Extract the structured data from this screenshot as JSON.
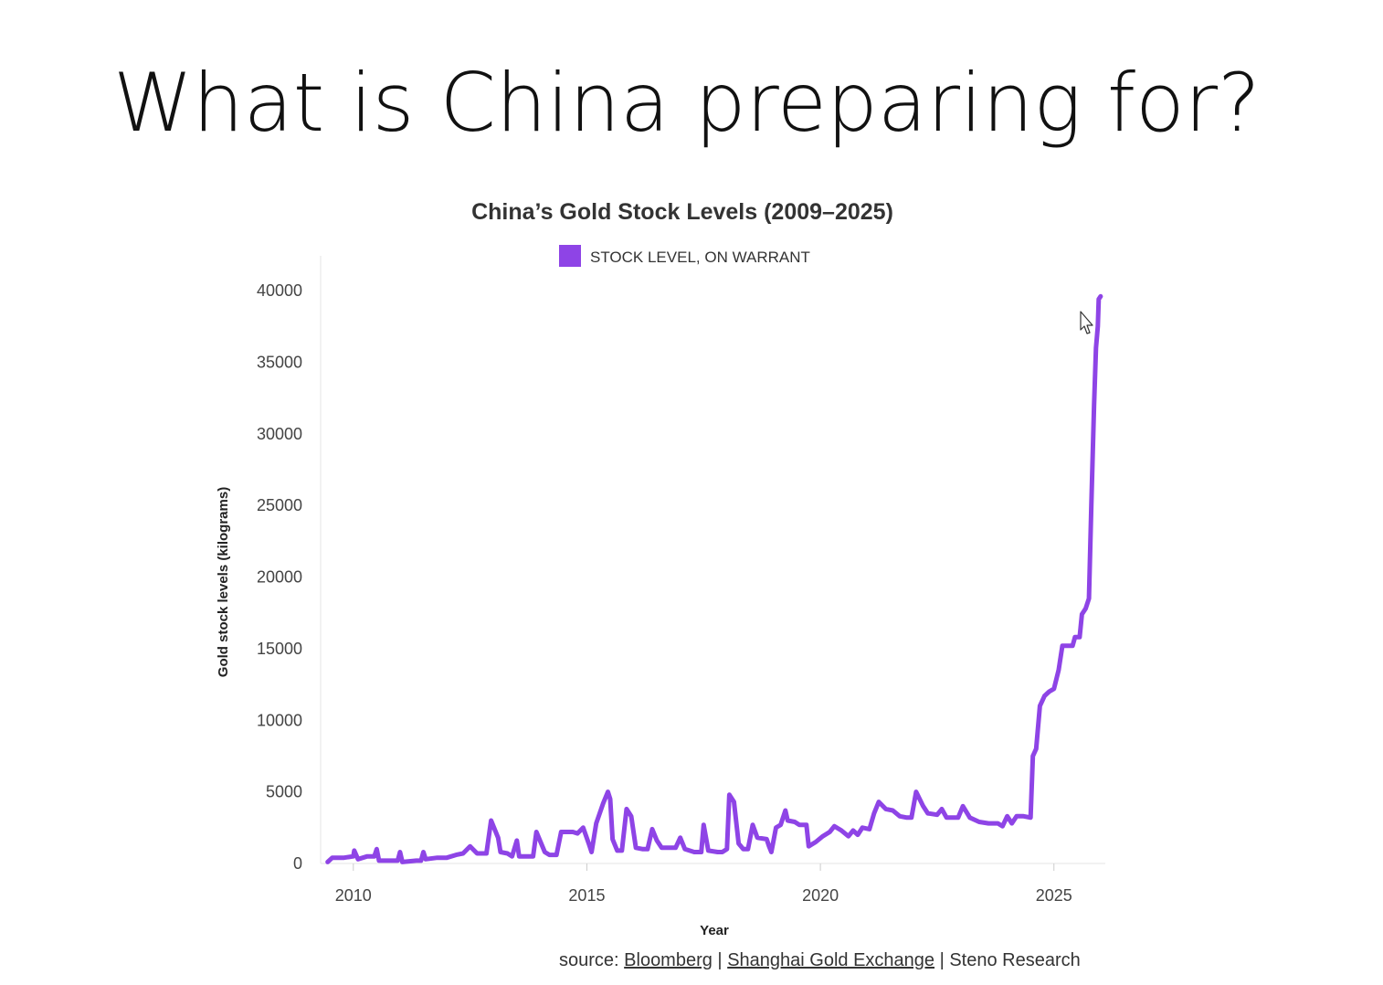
{
  "slide": {
    "title": "What is China preparing for?"
  },
  "chart_data": {
    "type": "line",
    "title": "China’s Gold Stock Levels (2009–2025)",
    "xlabel": "Year",
    "ylabel": "Gold stock levels (kilograms)",
    "xlim": [
      2009.3,
      2026.1
    ],
    "ylim": [
      0,
      40000
    ],
    "x_ticks": [
      2010,
      2015,
      2020,
      2025
    ],
    "y_ticks": [
      0,
      5000,
      10000,
      15000,
      20000,
      25000,
      30000,
      35000,
      40000
    ],
    "grid": false,
    "legend_position": "top-center",
    "series": [
      {
        "name": "STOCK LEVEL, ON WARRANT",
        "color": "#8e44e6",
        "points": [
          [
            2009.45,
            100
          ],
          [
            2009.55,
            400
          ],
          [
            2009.8,
            400
          ],
          [
            2010.0,
            500
          ],
          [
            2010.02,
            900
          ],
          [
            2010.1,
            300
          ],
          [
            2010.3,
            500
          ],
          [
            2010.45,
            500
          ],
          [
            2010.5,
            1000
          ],
          [
            2010.55,
            200
          ],
          [
            2010.8,
            200
          ],
          [
            2010.95,
            200
          ],
          [
            2011.0,
            800
          ],
          [
            2011.05,
            100
          ],
          [
            2011.35,
            200
          ],
          [
            2011.45,
            200
          ],
          [
            2011.5,
            800
          ],
          [
            2011.55,
            300
          ],
          [
            2011.8,
            400
          ],
          [
            2012.0,
            400
          ],
          [
            2012.2,
            600
          ],
          [
            2012.35,
            700
          ],
          [
            2012.5,
            1200
          ],
          [
            2012.65,
            700
          ],
          [
            2012.85,
            700
          ],
          [
            2012.95,
            3000
          ],
          [
            2013.1,
            1800
          ],
          [
            2013.15,
            800
          ],
          [
            2013.3,
            700
          ],
          [
            2013.4,
            500
          ],
          [
            2013.5,
            1600
          ],
          [
            2013.55,
            500
          ],
          [
            2013.7,
            500
          ],
          [
            2013.85,
            500
          ],
          [
            2013.92,
            2200
          ],
          [
            2014.1,
            800
          ],
          [
            2014.2,
            600
          ],
          [
            2014.35,
            600
          ],
          [
            2014.45,
            2200
          ],
          [
            2014.7,
            2200
          ],
          [
            2014.8,
            2100
          ],
          [
            2014.92,
            2500
          ],
          [
            2015.05,
            1300
          ],
          [
            2015.1,
            800
          ],
          [
            2015.2,
            2800
          ],
          [
            2015.35,
            4200
          ],
          [
            2015.45,
            5000
          ],
          [
            2015.5,
            4500
          ],
          [
            2015.55,
            1700
          ],
          [
            2015.65,
            900
          ],
          [
            2015.75,
            900
          ],
          [
            2015.85,
            3800
          ],
          [
            2015.95,
            3300
          ],
          [
            2016.05,
            1100
          ],
          [
            2016.2,
            1000
          ],
          [
            2016.3,
            1000
          ],
          [
            2016.4,
            2400
          ],
          [
            2016.5,
            1600
          ],
          [
            2016.6,
            1100
          ],
          [
            2016.9,
            1100
          ],
          [
            2017.0,
            1800
          ],
          [
            2017.1,
            1000
          ],
          [
            2017.3,
            800
          ],
          [
            2017.45,
            800
          ],
          [
            2017.5,
            2700
          ],
          [
            2017.6,
            900
          ],
          [
            2017.8,
            800
          ],
          [
            2017.9,
            800
          ],
          [
            2018.0,
            1000
          ],
          [
            2018.05,
            4800
          ],
          [
            2018.15,
            4300
          ],
          [
            2018.25,
            1400
          ],
          [
            2018.35,
            1000
          ],
          [
            2018.45,
            1000
          ],
          [
            2018.55,
            2700
          ],
          [
            2018.65,
            1800
          ],
          [
            2018.85,
            1700
          ],
          [
            2018.9,
            1200
          ],
          [
            2018.95,
            800
          ],
          [
            2019.05,
            2500
          ],
          [
            2019.15,
            2700
          ],
          [
            2019.25,
            3700
          ],
          [
            2019.3,
            3000
          ],
          [
            2019.45,
            2900
          ],
          [
            2019.55,
            2700
          ],
          [
            2019.7,
            2700
          ],
          [
            2019.75,
            1200
          ],
          [
            2019.9,
            1500
          ],
          [
            2020.05,
            1900
          ],
          [
            2020.2,
            2200
          ],
          [
            2020.3,
            2600
          ],
          [
            2020.45,
            2300
          ],
          [
            2020.6,
            1900
          ],
          [
            2020.7,
            2300
          ],
          [
            2020.8,
            2000
          ],
          [
            2020.9,
            2500
          ],
          [
            2021.05,
            2400
          ],
          [
            2021.15,
            3500
          ],
          [
            2021.25,
            4300
          ],
          [
            2021.4,
            3800
          ],
          [
            2021.55,
            3700
          ],
          [
            2021.7,
            3300
          ],
          [
            2021.85,
            3200
          ],
          [
            2021.95,
            3200
          ],
          [
            2022.05,
            5000
          ],
          [
            2022.2,
            4000
          ],
          [
            2022.3,
            3500
          ],
          [
            2022.5,
            3400
          ],
          [
            2022.6,
            3800
          ],
          [
            2022.7,
            3200
          ],
          [
            2022.95,
            3200
          ],
          [
            2023.05,
            4000
          ],
          [
            2023.2,
            3200
          ],
          [
            2023.4,
            2900
          ],
          [
            2023.6,
            2800
          ],
          [
            2023.8,
            2800
          ],
          [
            2023.9,
            2600
          ],
          [
            2024.0,
            3300
          ],
          [
            2024.1,
            2800
          ],
          [
            2024.2,
            3300
          ],
          [
            2024.35,
            3300
          ],
          [
            2024.5,
            3200
          ],
          [
            2024.55,
            7500
          ],
          [
            2024.62,
            8000
          ],
          [
            2024.7,
            11000
          ],
          [
            2024.8,
            11700
          ],
          [
            2024.9,
            12000
          ],
          [
            2025.0,
            12200
          ],
          [
            2025.1,
            13500
          ],
          [
            2025.18,
            15200
          ],
          [
            2025.3,
            15200
          ],
          [
            2025.4,
            15200
          ],
          [
            2025.45,
            15800
          ],
          [
            2025.55,
            15800
          ],
          [
            2025.6,
            17400
          ],
          [
            2025.68,
            17800
          ],
          [
            2025.75,
            18500
          ],
          [
            2025.8,
            25000
          ],
          [
            2025.86,
            32000
          ],
          [
            2025.9,
            36000
          ],
          [
            2025.94,
            37500
          ],
          [
            2025.96,
            39400
          ],
          [
            2026.0,
            39600
          ]
        ]
      }
    ],
    "source": {
      "prefix": "source:",
      "items": [
        "Bloomberg",
        "Shanghai Gold Exchange",
        "Steno Research"
      ],
      "separator": " | "
    }
  }
}
